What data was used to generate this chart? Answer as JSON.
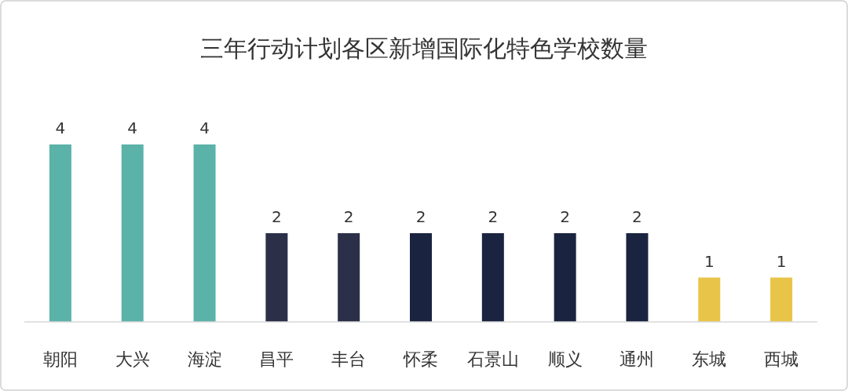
{
  "chart_data": {
    "type": "bar",
    "title": "三年行动计划各区新增国际化特色学校数量",
    "categories": [
      "朝阳",
      "大兴",
      "海淀",
      "昌平",
      "丰台",
      "怀柔",
      "石景山",
      "顺义",
      "通州",
      "东城",
      "西城"
    ],
    "values": [
      4,
      4,
      4,
      2,
      2,
      2,
      2,
      2,
      2,
      1,
      1
    ],
    "colors": [
      "#5bb2a8",
      "#5bb2a8",
      "#5bb2a8",
      "#2b3048",
      "#2b3048",
      "#1a2440",
      "#1a2440",
      "#1a2440",
      "#1a2440",
      "#e8c548",
      "#e8c548"
    ],
    "data_labels": true
  }
}
